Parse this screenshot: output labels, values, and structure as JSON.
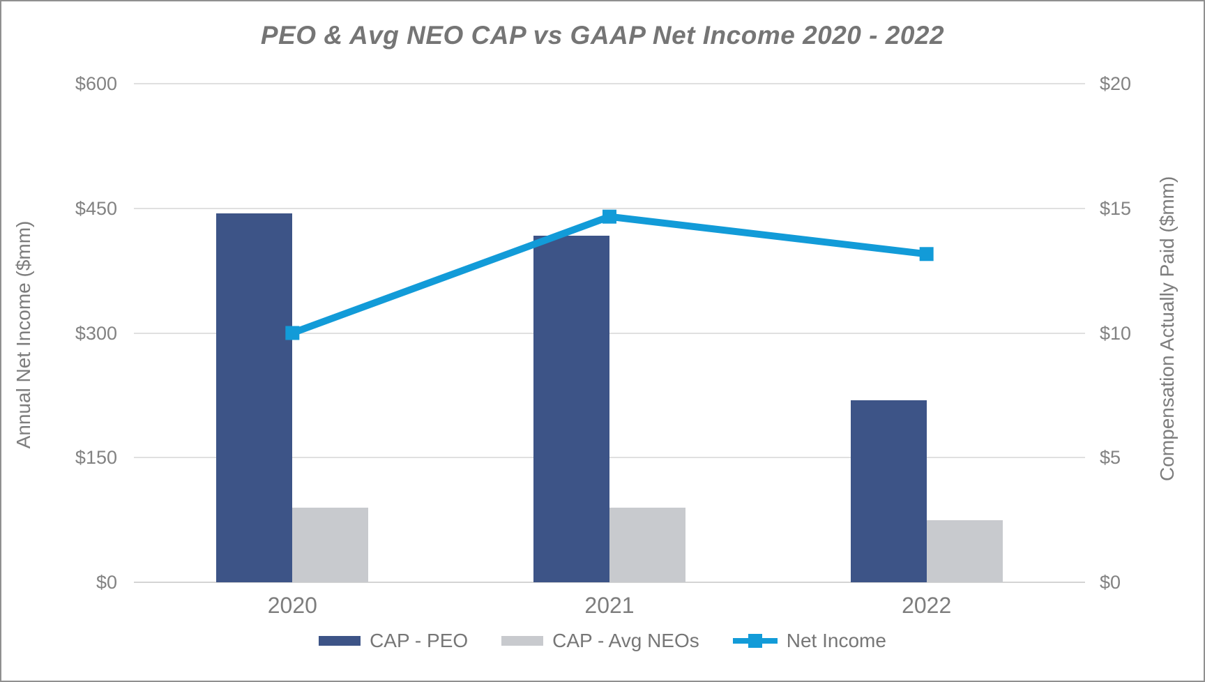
{
  "chart_data": {
    "type": "combo (bar + line)",
    "title": "PEO & Avg NEO CAP vs GAAP Net Income 2020 - 2022",
    "categories": [
      "2020",
      "2021",
      "2022"
    ],
    "bar_series": [
      {
        "name": "CAP - PEO",
        "axis": "right",
        "color": "#3D5487",
        "values": [
          14.8,
          13.9,
          7.3
        ]
      },
      {
        "name": "CAP - Avg NEOs",
        "axis": "right",
        "color": "#C8CACE",
        "values": [
          3.0,
          3.0,
          2.5
        ]
      }
    ],
    "line_series": [
      {
        "name": "Net Income",
        "axis": "left",
        "color": "#129BD8",
        "marker": "square",
        "values": [
          300,
          440,
          395
        ]
      }
    ],
    "left_axis": {
      "label": "Annual Net Income ($mm)",
      "min": 0,
      "max": 600,
      "step": 150,
      "tick_labels": [
        "$0",
        "$150",
        "$300",
        "$450",
        "$600"
      ]
    },
    "right_axis": {
      "label": "Compensation Actually Paid ($mm)",
      "min": 0,
      "max": 20,
      "step": 5,
      "tick_labels": [
        "$0",
        "$5",
        "$10",
        "$15",
        "$20"
      ]
    },
    "grid": true,
    "legend_position": "bottom",
    "colors": {
      "gridline": "#E0E0E0",
      "baseline": "#D4D4D4",
      "title_text": "#757575",
      "axis_text": "#828282",
      "frame_border": "#909090"
    }
  }
}
